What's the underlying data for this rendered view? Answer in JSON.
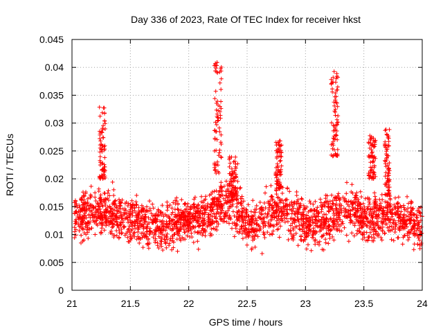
{
  "chart_data": {
    "type": "scatter",
    "title": "Day 336 of 2023, Rate Of TEC Index for receiver hkst",
    "xlabel": "GPS time / hours",
    "ylabel": "ROTI / TECUs",
    "xlim": [
      21,
      24
    ],
    "ylim": [
      0,
      0.045
    ],
    "xticks": [
      21,
      21.5,
      22,
      22.5,
      23,
      23.5,
      24
    ],
    "xtick_labels": [
      "21",
      "21.5",
      "22",
      "22.5",
      "23",
      "23.5",
      "24"
    ],
    "yticks": [
      0,
      0.005,
      0.01,
      0.015,
      0.02,
      0.025,
      0.03,
      0.035,
      0.04,
      0.045
    ],
    "ytick_labels": [
      "0",
      "0.005",
      "0.01",
      "0.015",
      "0.02",
      "0.025",
      "0.03",
      "0.035",
      "0.04",
      "0.045"
    ],
    "grid": true,
    "marker": "+",
    "color": "#ff0000",
    "series": [
      {
        "name": "ROTI",
        "base_envelope": {
          "x": [
            21.02,
            21.1,
            21.2,
            21.3,
            21.4,
            21.5,
            21.6,
            21.7,
            21.8,
            21.9,
            22.0,
            22.1,
            22.2,
            22.3,
            22.4,
            22.5,
            22.6,
            22.7,
            22.8,
            22.9,
            23.0,
            23.1,
            23.2,
            23.3,
            23.4,
            23.5,
            23.6,
            23.7,
            23.8,
            23.9,
            24.0
          ],
          "median": [
            0.013,
            0.013,
            0.014,
            0.014,
            0.013,
            0.013,
            0.012,
            0.012,
            0.011,
            0.012,
            0.013,
            0.013,
            0.014,
            0.016,
            0.015,
            0.012,
            0.012,
            0.014,
            0.015,
            0.013,
            0.012,
            0.012,
            0.013,
            0.014,
            0.014,
            0.013,
            0.013,
            0.014,
            0.013,
            0.012,
            0.011
          ],
          "spread": [
            0.004,
            0.005,
            0.006,
            0.005,
            0.005,
            0.005,
            0.005,
            0.005,
            0.005,
            0.005,
            0.004,
            0.005,
            0.005,
            0.005,
            0.005,
            0.005,
            0.005,
            0.005,
            0.005,
            0.005,
            0.005,
            0.005,
            0.005,
            0.005,
            0.005,
            0.005,
            0.005,
            0.005,
            0.005,
            0.005,
            0.004
          ]
        },
        "peak_clusters": [
          {
            "x_center": 21.26,
            "x_width": 0.05,
            "y_min": 0.02,
            "y_max": 0.033
          },
          {
            "x_center": 22.25,
            "x_width": 0.06,
            "y_min": 0.021,
            "y_max": 0.041
          },
          {
            "x_center": 22.38,
            "x_width": 0.08,
            "y_min": 0.016,
            "y_max": 0.024
          },
          {
            "x_center": 22.77,
            "x_width": 0.05,
            "y_min": 0.018,
            "y_max": 0.027
          },
          {
            "x_center": 23.25,
            "x_width": 0.06,
            "y_min": 0.024,
            "y_max": 0.04
          },
          {
            "x_center": 23.57,
            "x_width": 0.06,
            "y_min": 0.02,
            "y_max": 0.028
          },
          {
            "x_center": 23.7,
            "x_width": 0.04,
            "y_min": 0.017,
            "y_max": 0.029
          }
        ],
        "point_count": 2400
      }
    ]
  }
}
